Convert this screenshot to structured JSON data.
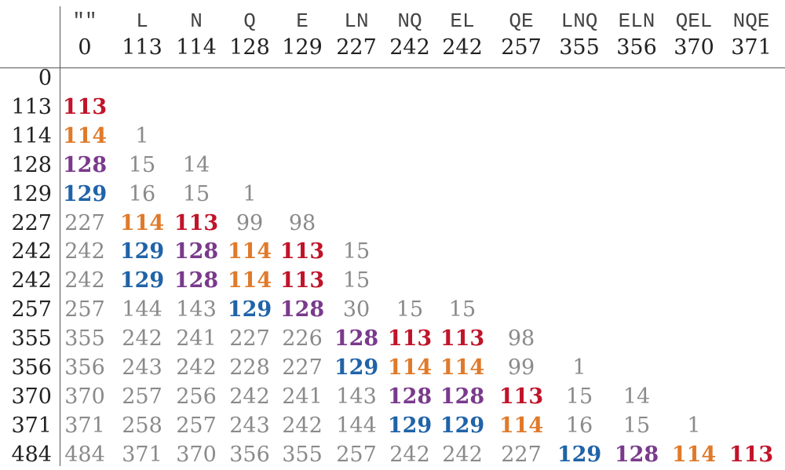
{
  "columns": [
    {
      "peptide": "\"\"",
      "mass": "0"
    },
    {
      "peptide": "L",
      "mass": "113"
    },
    {
      "peptide": "N",
      "mass": "114"
    },
    {
      "peptide": "Q",
      "mass": "128"
    },
    {
      "peptide": "E",
      "mass": "129"
    },
    {
      "peptide": "LN",
      "mass": "227"
    },
    {
      "peptide": "NQ",
      "mass": "242"
    },
    {
      "peptide": "EL",
      "mass": "242"
    },
    {
      "peptide": "QE",
      "mass": "257"
    },
    {
      "peptide": "LNQ",
      "mass": "355"
    },
    {
      "peptide": "ELN",
      "mass": "356"
    },
    {
      "peptide": "QEL",
      "mass": "370"
    },
    {
      "peptide": "NQE",
      "mass": "371"
    }
  ],
  "colors": {
    "113": "#c0142a",
    "114": "#e07a2a",
    "128": "#7a3a8c",
    "129": "#2063a8",
    "plain": "#8a8a8a"
  },
  "rows": [
    {
      "mass": "0",
      "cells": []
    },
    {
      "mass": "113",
      "cells": [
        "113"
      ]
    },
    {
      "mass": "114",
      "cells": [
        "114",
        "1"
      ]
    },
    {
      "mass": "128",
      "cells": [
        "128",
        "15",
        "14"
      ]
    },
    {
      "mass": "129",
      "cells": [
        "129",
        "16",
        "15",
        "1"
      ]
    },
    {
      "mass": "227",
      "cells": [
        "227",
        "114",
        "113",
        "99",
        "98"
      ]
    },
    {
      "mass": "242",
      "cells": [
        "242",
        "129",
        "128",
        "114",
        "113",
        "15"
      ]
    },
    {
      "mass": "242",
      "cells": [
        "242",
        "129",
        "128",
        "114",
        "113",
        "15"
      ]
    },
    {
      "mass": "257",
      "cells": [
        "257",
        "144",
        "143",
        "129",
        "128",
        "30",
        "15",
        "15"
      ]
    },
    {
      "mass": "355",
      "cells": [
        "355",
        "242",
        "241",
        "227",
        "226",
        "128",
        "113",
        "113",
        "98"
      ]
    },
    {
      "mass": "356",
      "cells": [
        "356",
        "243",
        "242",
        "228",
        "227",
        "129",
        "114",
        "114",
        "99",
        "1"
      ]
    },
    {
      "mass": "370",
      "cells": [
        "370",
        "257",
        "256",
        "242",
        "241",
        "143",
        "128",
        "128",
        "113",
        "15",
        "14"
      ]
    },
    {
      "mass": "371",
      "cells": [
        "371",
        "258",
        "257",
        "243",
        "242",
        "144",
        "129",
        "129",
        "114",
        "16",
        "15",
        "1"
      ]
    },
    {
      "mass": "484",
      "cells": [
        "484",
        "371",
        "370",
        "356",
        "355",
        "257",
        "242",
        "242",
        "227",
        "129",
        "128",
        "114",
        "113"
      ]
    }
  ]
}
